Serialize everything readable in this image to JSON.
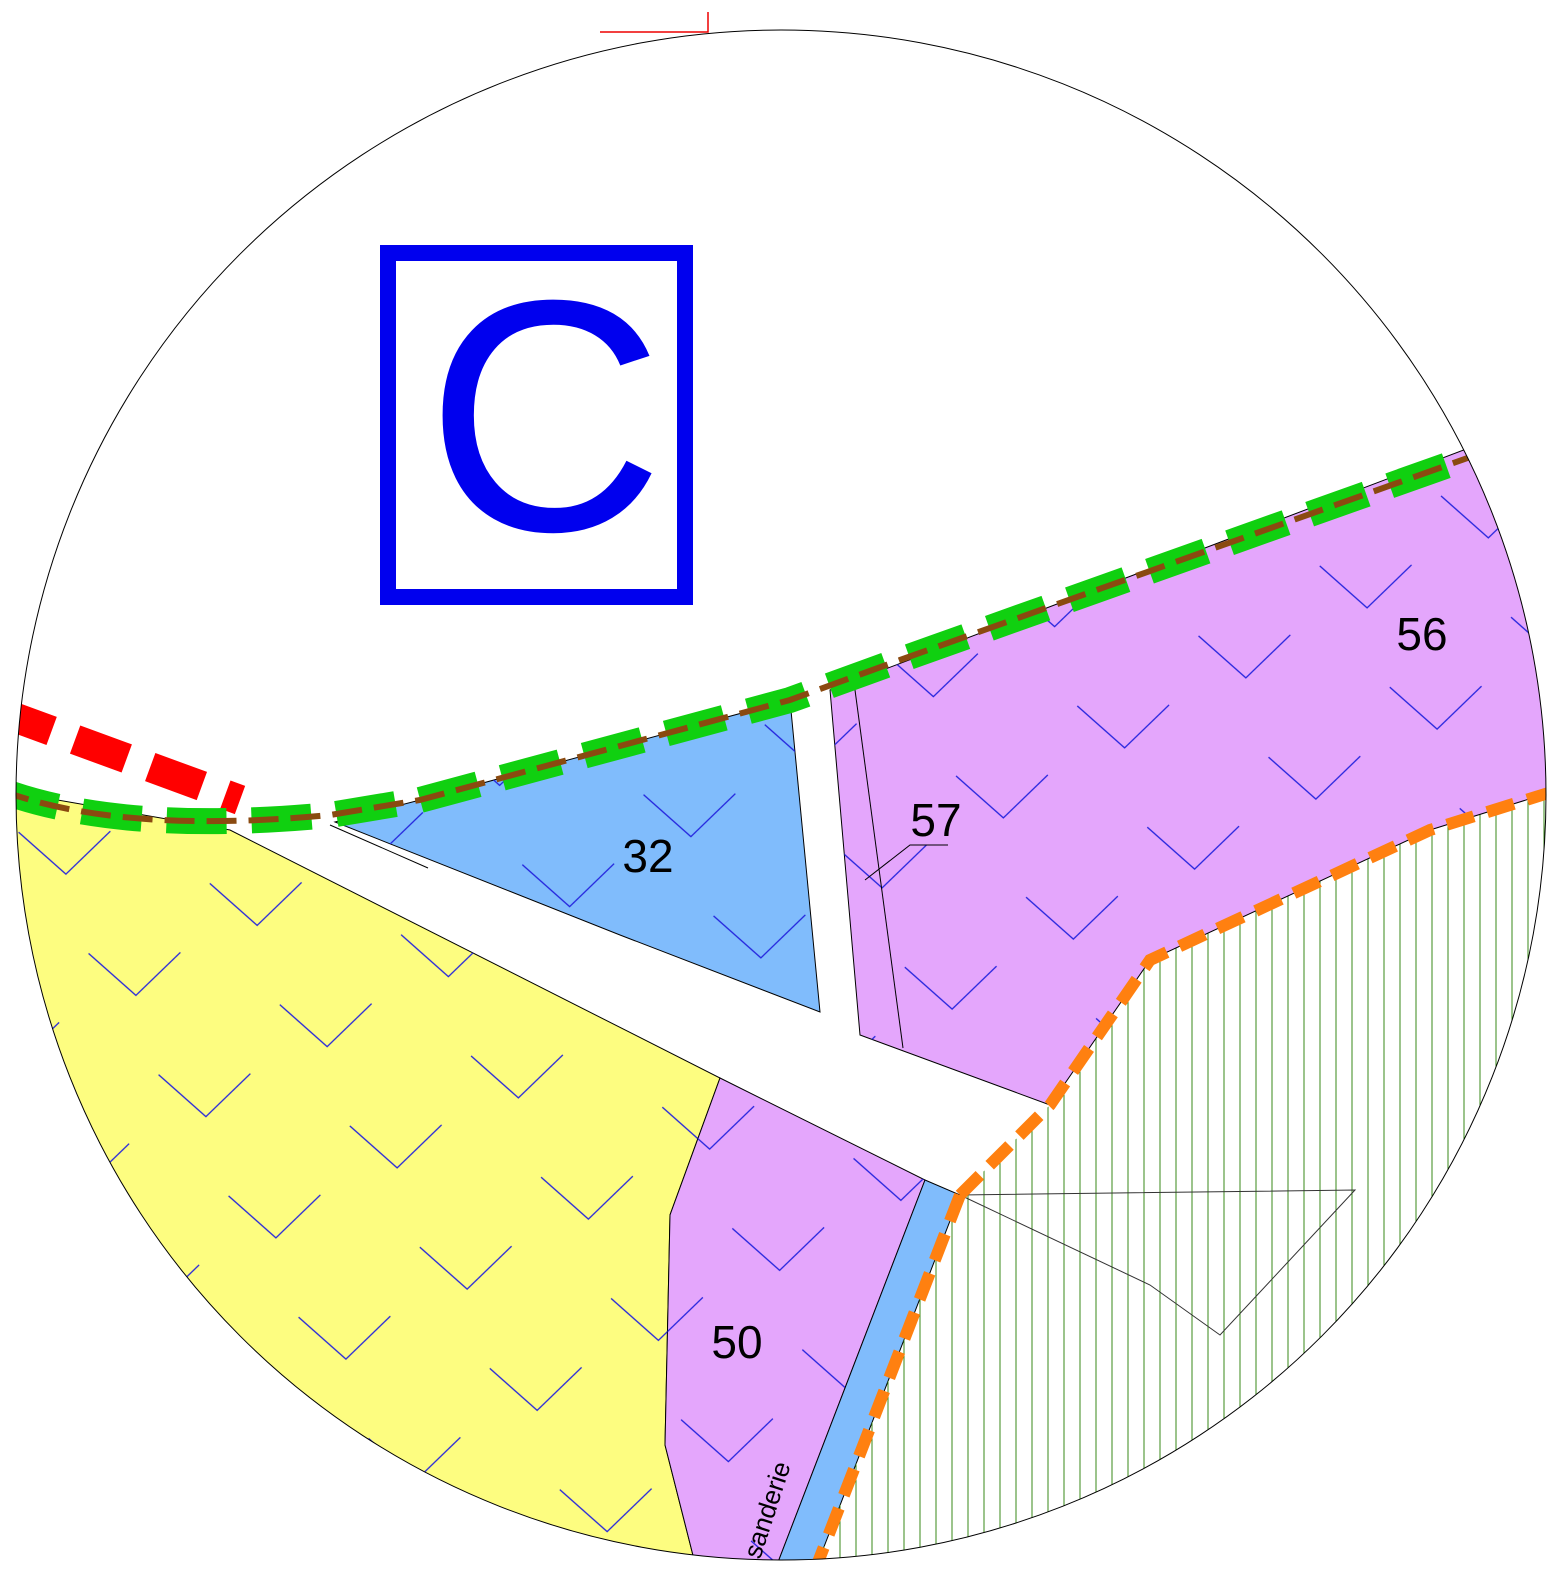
{
  "zone": "C",
  "parcels": [
    "56",
    "57",
    "32",
    "50"
  ],
  "street": "sanderie"
}
